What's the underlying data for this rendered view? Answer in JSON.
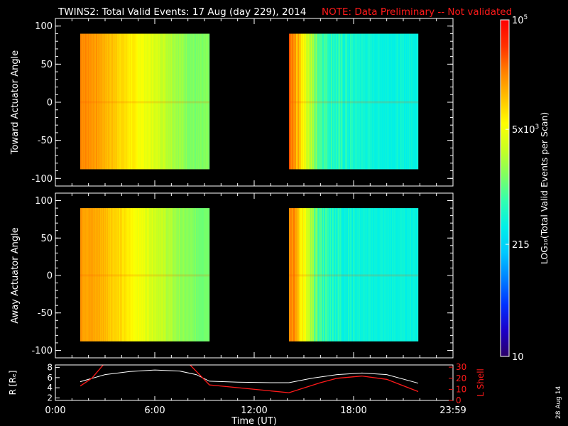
{
  "header": {
    "title": "TWINS2: Total Valid Events: 17 Aug (day 229), 2014",
    "note": "NOTE: Data Preliminary -- Not validated"
  },
  "colors": {
    "background": "#000000",
    "axes": "#ffffff",
    "note": "#ff1a1a",
    "lshell": "#ff1a1a",
    "radius": "#ffffff"
  },
  "side_date": "28 Aug 14",
  "chart_data": [
    {
      "type": "heatmap",
      "id": "toward",
      "ylabel": "Toward Actuator Angle",
      "xlim": [
        0,
        24
      ],
      "ylim": [
        -110,
        110
      ],
      "yticks": [
        "100",
        "50",
        "0",
        "-50",
        "-100"
      ],
      "ytick_values": [
        100,
        50,
        0,
        -50,
        -100
      ],
      "angle_range": [
        -88,
        90
      ],
      "segments": [
        {
          "start": 1.5,
          "end": 9.3,
          "profile": [
            0.84,
            0.83,
            0.82,
            0.8,
            0.78,
            0.76,
            0.74,
            0.72,
            0.7,
            0.68,
            0.66,
            0.64,
            0.62,
            0.6,
            0.58,
            0.56,
            0.54,
            0.53,
            0.53,
            0.54
          ]
        },
        {
          "start": 14.1,
          "end": 21.9,
          "profile": [
            0.86,
            0.8,
            0.72,
            0.6,
            0.52,
            0.48,
            0.45,
            0.44,
            0.43,
            0.42,
            0.42,
            0.41,
            0.41,
            0.4,
            0.4,
            0.4,
            0.4,
            0.4,
            0.4,
            0.4
          ]
        }
      ]
    },
    {
      "type": "heatmap",
      "id": "away",
      "ylabel": "Away Actuator Angle",
      "xlim": [
        0,
        24
      ],
      "ylim": [
        -110,
        110
      ],
      "yticks": [
        "100",
        "50",
        "0",
        "-50",
        "-100"
      ],
      "ytick_values": [
        100,
        50,
        0,
        -50,
        -100
      ],
      "angle_range": [
        -88,
        90
      ],
      "segments": [
        {
          "start": 1.5,
          "end": 9.3,
          "profile": [
            0.82,
            0.81,
            0.8,
            0.79,
            0.77,
            0.75,
            0.73,
            0.71,
            0.69,
            0.67,
            0.65,
            0.63,
            0.61,
            0.59,
            0.57,
            0.55,
            0.54,
            0.53,
            0.53,
            0.54
          ]
        },
        {
          "start": 14.1,
          "end": 21.9,
          "profile": [
            0.86,
            0.8,
            0.7,
            0.58,
            0.5,
            0.46,
            0.44,
            0.43,
            0.42,
            0.41,
            0.41,
            0.4,
            0.4,
            0.4,
            0.4,
            0.4,
            0.4,
            0.4,
            0.4,
            0.4
          ]
        }
      ]
    },
    {
      "type": "line",
      "id": "orbit",
      "ylabel_left": "R [Rₑ]",
      "ylabel_right": "L Shell",
      "xlabel": "Time (UT)",
      "xticks": [
        "0:00",
        "6:00",
        "12:00",
        "18:00",
        "23:59"
      ],
      "xtick_values": [
        0,
        6,
        12,
        18,
        24
      ],
      "xlim": [
        0,
        24
      ],
      "ylim_left": [
        1.5,
        8.5
      ],
      "ylim_right": [
        0,
        32
      ],
      "yticks_left": [
        "8",
        "6",
        "4",
        "2"
      ],
      "ytick_values_left": [
        8,
        6,
        4,
        2
      ],
      "yticks_right": [
        "30",
        "20",
        "10",
        "0"
      ],
      "ytick_values_right": [
        30,
        20,
        10,
        0
      ],
      "series": [
        {
          "x": [
            1.5,
            3,
            4.5,
            6,
            7.5,
            8.5,
            9.3,
            11,
            13,
            14.1,
            15.5,
            17,
            18.5,
            20,
            21.9
          ],
          "y": [
            5.2,
            6.6,
            7.2,
            7.5,
            7.3,
            6.6,
            5.3,
            5.1,
            5.0,
            5.0,
            5.9,
            6.6,
            6.9,
            6.6,
            4.9
          ]
        },
        {
          "x": [
            1.5,
            2.2,
            3.0,
            8.0,
            9.3,
            14.1,
            16,
            17,
            18.5,
            20,
            21.9
          ],
          "y": [
            13,
            20,
            34,
            34,
            14,
            7,
            16,
            20,
            22,
            19,
            8
          ]
        }
      ]
    }
  ],
  "colorbar": {
    "label": "LOG₁₀(Total Valid Events per Scan)",
    "ticks": [
      {
        "base": "10",
        "exp": "5",
        "value": 100000
      },
      {
        "base": "5x10",
        "exp": "3",
        "value": 5000
      },
      {
        "base": "215",
        "exp": "",
        "value": 215
      },
      {
        "base": "10",
        "exp": "",
        "value": 10
      }
    ],
    "range": [
      10,
      100000
    ],
    "stops": [
      "#2a0066",
      "#1c00c8",
      "#0030ff",
      "#0080ff",
      "#00c8ff",
      "#00f0e8",
      "#30ffb0",
      "#80ff60",
      "#c8ff20",
      "#ffff00",
      "#ffc000",
      "#ff8000",
      "#ff3000",
      "#ff0000"
    ]
  }
}
